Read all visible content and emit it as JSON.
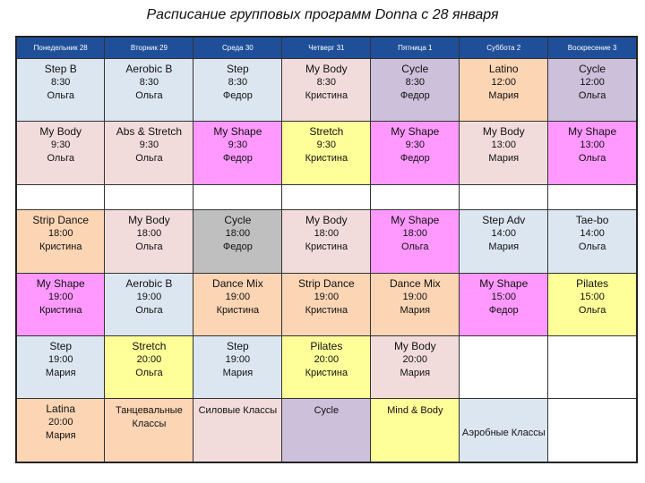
{
  "title": "Расписание групповых программ Donna с 28 января",
  "days": [
    "Понедельник 28",
    "Вторник 29",
    "Среда 30",
    "Четверг 31",
    "Пятница 1",
    "Суббота 2",
    "Воскресение 3"
  ],
  "colors": {
    "blue": "#dce6f1",
    "purple": "#ccc0da",
    "pink": "#f2dcdb",
    "orange": "#fcd5b4",
    "yellow": "#ffff99",
    "magenta": "#ff99ff",
    "gray": "#bfbfbf",
    "header": "#1f4f99"
  },
  "rows": [
    [
      {
        "name": "Step B",
        "time": "8:30",
        "trainer": "Ольга"
      },
      {
        "name": "Aerobic B",
        "time": "8:30",
        "trainer": "Ольга"
      },
      {
        "name": "Step",
        "time": "8:30",
        "trainer": "Федор"
      },
      {
        "name": "My Body",
        "time": "8:30",
        "trainer": "Кристина"
      },
      {
        "name": "Cycle",
        "time": "8:30",
        "trainer": "Федор"
      },
      {
        "name": "Latino",
        "time": "12:00",
        "trainer": "Мария"
      },
      {
        "name": "Cycle",
        "time": "12:00",
        "trainer": "Ольга"
      }
    ],
    [
      {
        "name": "My Body",
        "time": "9:30",
        "trainer": "Ольга"
      },
      {
        "name": "Abs & Stretch",
        "time": "9:30",
        "trainer": "Ольга"
      },
      {
        "name": "My Shape",
        "time": "9:30",
        "trainer": "Федор"
      },
      {
        "name": "Stretch",
        "time": "9:30",
        "trainer": "Кристина"
      },
      {
        "name": "My Shape",
        "time": "9:30",
        "trainer": "Федор"
      },
      {
        "name": "My Body",
        "time": "13:00",
        "trainer": "Мария"
      },
      {
        "name": "My Shape",
        "time": "13:00",
        "trainer": "Ольга"
      }
    ],
    [
      {
        "name": "Strip Dance",
        "time": "18:00",
        "trainer": "Кристина"
      },
      {
        "name": "My Body",
        "time": "18:00",
        "trainer": "Ольга"
      },
      {
        "name": "Cycle",
        "time": "18:00",
        "trainer": "Федор"
      },
      {
        "name": "My Body",
        "time": "18:00",
        "trainer": "Кристина"
      },
      {
        "name": "My Shape",
        "time": "18:00",
        "trainer": "Ольга"
      },
      {
        "name": "Step Adv",
        "time": "14:00",
        "trainer": "Мария"
      },
      {
        "name": "Tae-bo",
        "time": "14:00",
        "trainer": "Ольга"
      }
    ],
    [
      {
        "name": "My Shape",
        "time": "19:00",
        "trainer": "Кристина"
      },
      {
        "name": "Aerobic B",
        "time": "19:00",
        "trainer": "Ольга"
      },
      {
        "name": "Dance Mix",
        "time": "19:00",
        "trainer": "Кристина"
      },
      {
        "name": "Strip Dance",
        "time": "19:00",
        "trainer": "Кристина"
      },
      {
        "name": "Dance Mix",
        "time": "19:00",
        "trainer": "Мария"
      },
      {
        "name": "My Shape",
        "time": "15:00",
        "trainer": "Федор"
      },
      {
        "name": "Pilates",
        "time": "15:00",
        "trainer": "Ольга"
      }
    ],
    [
      {
        "name": "Step",
        "time": "19:00",
        "trainer": "Мария"
      },
      {
        "name": "Stretch",
        "time": "20:00",
        "trainer": "Ольга"
      },
      {
        "name": "Step",
        "time": "19:00",
        "trainer": "Мария"
      },
      {
        "name": "Pilates",
        "time": "20:00",
        "trainer": "Кристина"
      },
      {
        "name": "My Body",
        "time": "20:00",
        "trainer": "Мария"
      }
    ],
    [
      {
        "name": "Latina",
        "time": "20:00",
        "trainer": "Мария"
      }
    ]
  ],
  "legend": {
    "dance": "Танцевальные Классы",
    "strength": "Силовые Классы",
    "cycle": "Cycle",
    "mind_body": "Mind & Body",
    "aerobic": "Аэробные Классы"
  }
}
